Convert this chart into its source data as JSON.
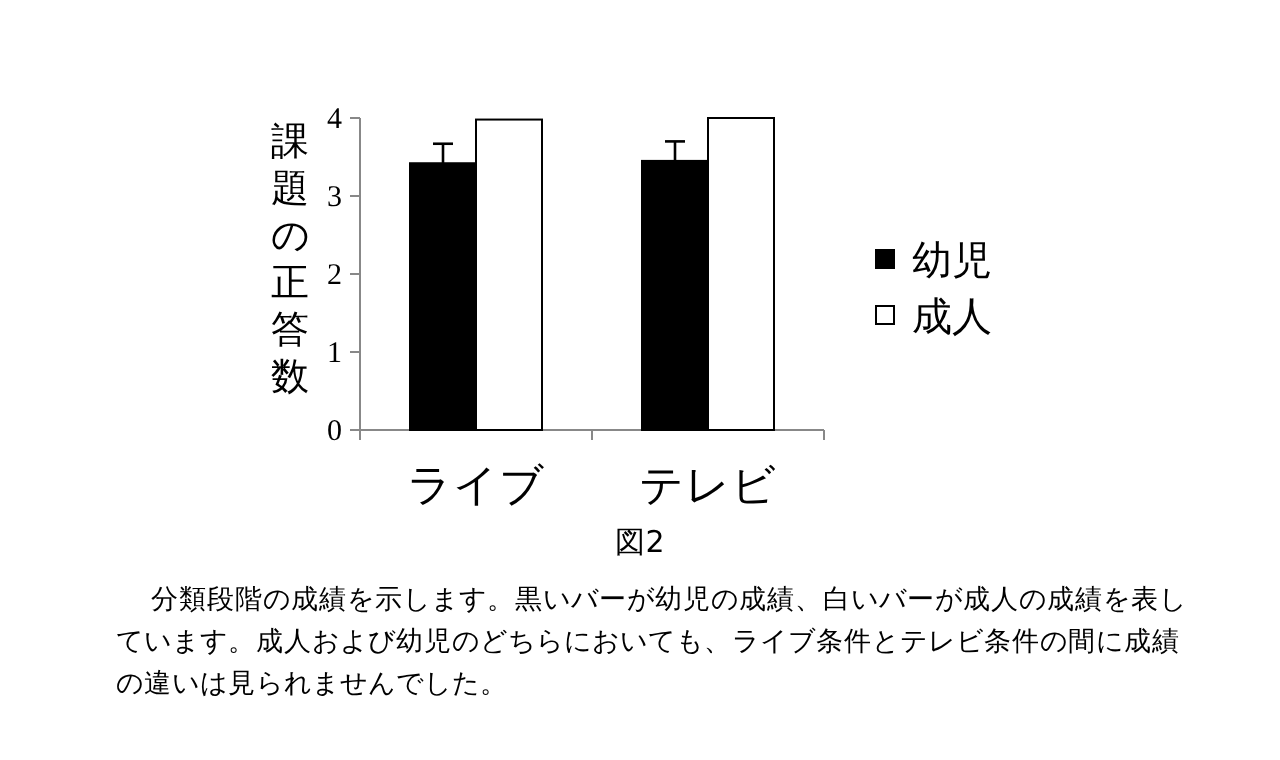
{
  "chart_data": {
    "type": "bar",
    "ylabel": "課題の正答数",
    "categories": [
      "ライブ",
      "テレビ"
    ],
    "series": [
      {
        "name": "幼児",
        "color": "#000000",
        "values": [
          3.42,
          3.45
        ],
        "errors": [
          [
            3.42,
            3.67
          ],
          [
            3.45,
            3.7
          ]
        ]
      },
      {
        "name": "成人",
        "color": "#ffffff",
        "values": [
          3.98,
          4.0
        ],
        "errors": [
          null,
          null
        ]
      }
    ],
    "ylim": [
      0,
      4
    ],
    "yticks": [
      0,
      1,
      2,
      3,
      4
    ],
    "grid": false,
    "legend": "right",
    "annotations": [
      "図2",
      "分類段階の成績を示します。黒いバーが幼児の成績、白いバーが成人の成績を表しています。成人および幼児のどちらにおいても、ライブ条件とテレビ条件の間に成績の違いは見られませんでした。"
    ]
  }
}
